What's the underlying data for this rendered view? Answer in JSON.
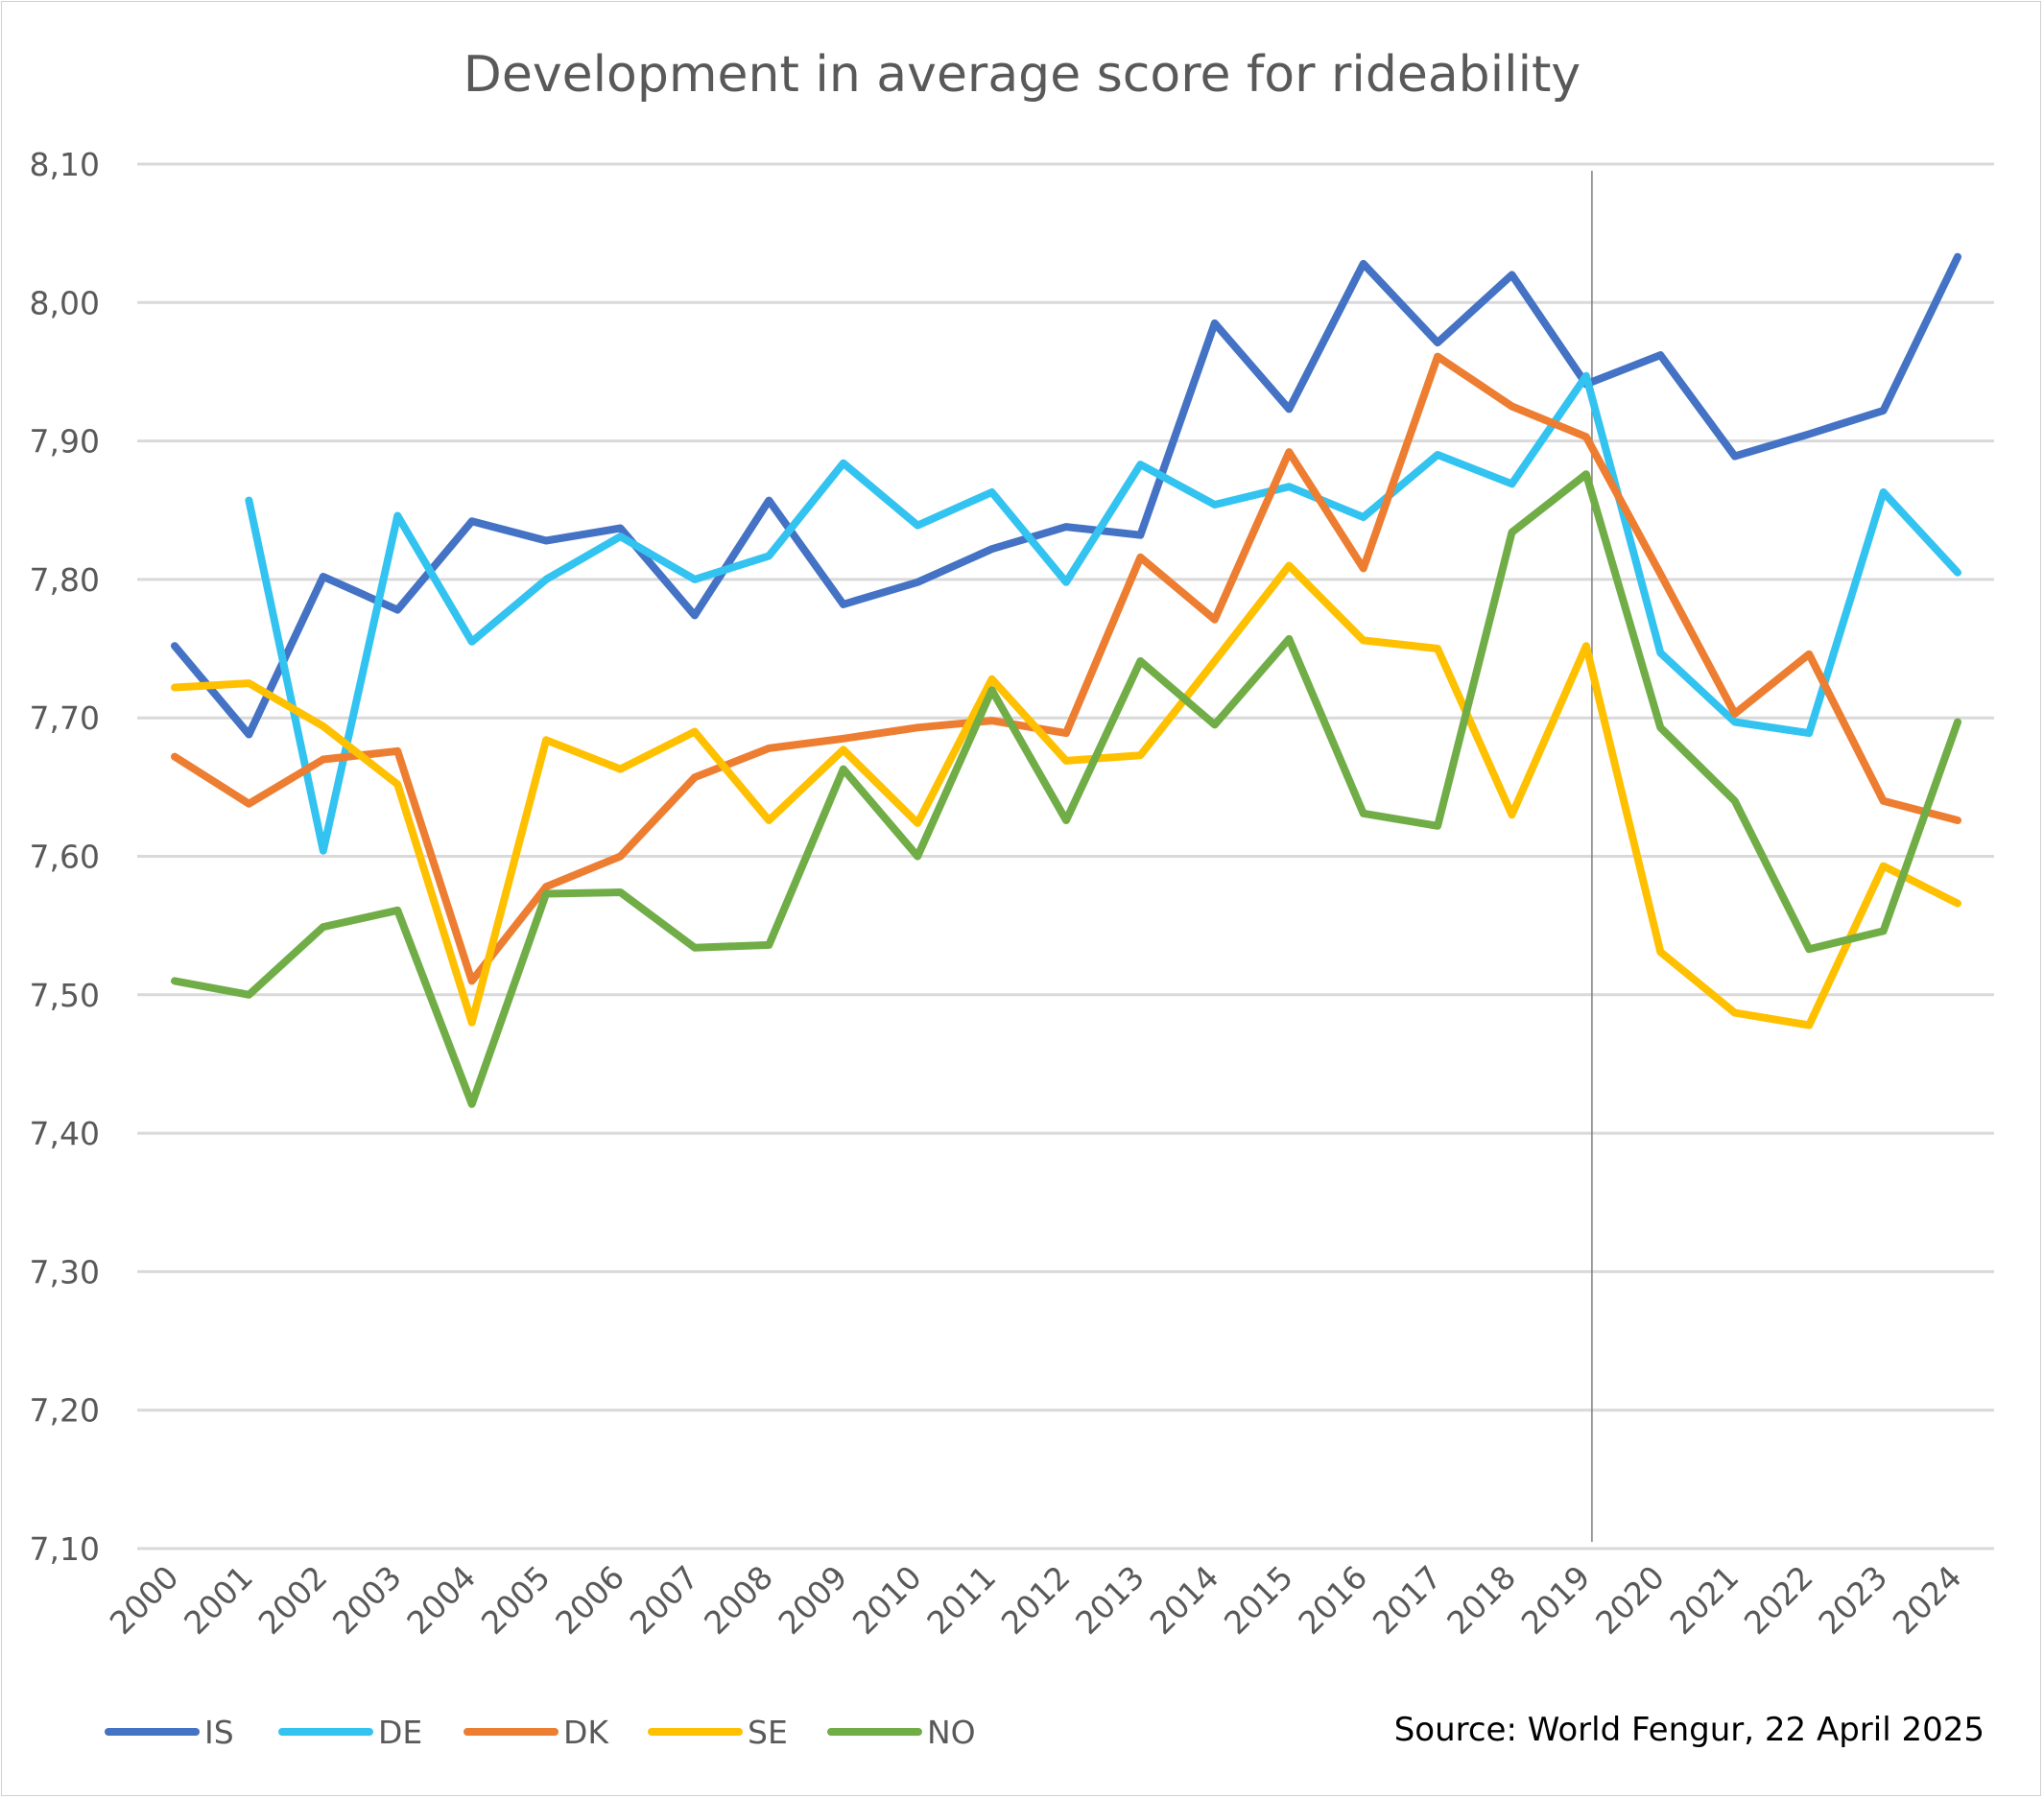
{
  "chart_data": {
    "type": "line",
    "title": "Development in average score for rideability",
    "source": "Source: World Fengur, 22 April 2025",
    "xlabel": "",
    "ylabel": "",
    "ylim": [
      7.1,
      8.1
    ],
    "y_ticks": [
      "7,10",
      "7,20",
      "7,30",
      "7,40",
      "7,50",
      "7,60",
      "7,70",
      "7,80",
      "7,90",
      "8,00",
      "8,10"
    ],
    "grid": true,
    "legend_position": "bottom-left",
    "marker_line_at": "2019",
    "categories": [
      "2000",
      "2001",
      "2002",
      "2003",
      "2004",
      "2005",
      "2006",
      "2007",
      "2008",
      "2009",
      "2010",
      "2011",
      "2012",
      "2013",
      "2014",
      "2015",
      "2016",
      "2017",
      "2018",
      "2019",
      "2020",
      "2021",
      "2022",
      "2023",
      "2024"
    ],
    "series": [
      {
        "name": "IS",
        "color": "#4472c4",
        "values": [
          7.752,
          7.688,
          7.802,
          7.778,
          7.842,
          7.828,
          7.837,
          7.774,
          7.857,
          7.782,
          7.798,
          7.822,
          7.838,
          7.832,
          7.985,
          7.923,
          8.028,
          7.971,
          8.02,
          7.941,
          7.962,
          7.889,
          7.905,
          7.922,
          8.033
        ]
      },
      {
        "name": "DE",
        "color": "#33c3f0",
        "values": [
          null,
          7.857,
          7.604,
          7.846,
          7.755,
          7.8,
          7.831,
          7.8,
          7.817,
          7.884,
          7.839,
          7.863,
          7.798,
          7.883,
          7.854,
          7.867,
          7.845,
          7.89,
          7.869,
          7.947,
          7.747,
          7.697,
          7.689,
          7.863,
          7.805
        ]
      },
      {
        "name": "DK",
        "color": "#ed7d31",
        "values": [
          7.672,
          7.638,
          7.67,
          7.676,
          7.51,
          7.578,
          7.6,
          7.657,
          7.678,
          7.685,
          7.693,
          7.698,
          7.689,
          7.816,
          7.771,
          7.892,
          7.808,
          7.961,
          7.925,
          7.903,
          7.804,
          7.703,
          7.746,
          7.64,
          7.626
        ]
      },
      {
        "name": "SE",
        "color": "#ffc000",
        "values": [
          7.722,
          7.725,
          7.694,
          7.652,
          7.48,
          7.684,
          7.663,
          7.69,
          7.626,
          7.677,
          7.624,
          7.728,
          7.669,
          7.673,
          7.741,
          7.81,
          7.756,
          7.75,
          7.63,
          7.752,
          7.531,
          7.487,
          7.478,
          7.593,
          7.566
        ]
      },
      {
        "name": "NO",
        "color": "#70ad47",
        "values": [
          7.51,
          7.5,
          7.549,
          7.561,
          7.421,
          7.573,
          7.574,
          7.534,
          7.536,
          7.663,
          7.6,
          7.72,
          7.626,
          7.741,
          7.695,
          7.757,
          7.631,
          7.622,
          7.834,
          7.876,
          7.693,
          7.64,
          7.533,
          7.546,
          7.697
        ]
      }
    ]
  }
}
